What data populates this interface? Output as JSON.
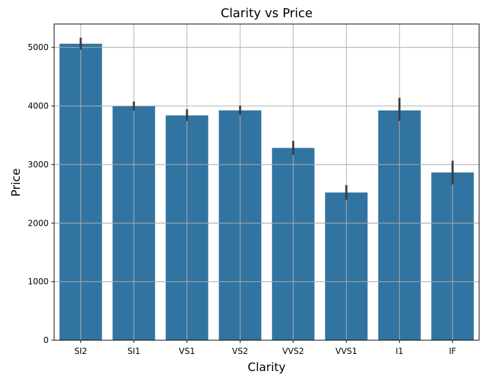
{
  "chart_data": {
    "type": "bar",
    "title": "Clarity vs Price",
    "xlabel": "Clarity",
    "ylabel": "Price",
    "categories": [
      "SI2",
      "SI1",
      "VS1",
      "VS2",
      "VVS2",
      "VVS1",
      "I1",
      "IF"
    ],
    "values": [
      5063,
      3996,
      3839,
      3925,
      3284,
      2523,
      3924,
      2865
    ],
    "error_low": [
      4960,
      3920,
      3745,
      3845,
      3165,
      2395,
      3745,
      2660
    ],
    "error_high": [
      5165,
      4075,
      3945,
      4005,
      3405,
      2650,
      4140,
      3065
    ],
    "ylim": [
      0,
      5400
    ],
    "yticks": [
      0,
      1000,
      2000,
      3000,
      4000,
      5000
    ],
    "grid": true,
    "colors": {
      "bar": "#3274a1",
      "error_bar": "#3d3d3d",
      "grid": "#b0b0b0",
      "axis": "#000000"
    }
  }
}
